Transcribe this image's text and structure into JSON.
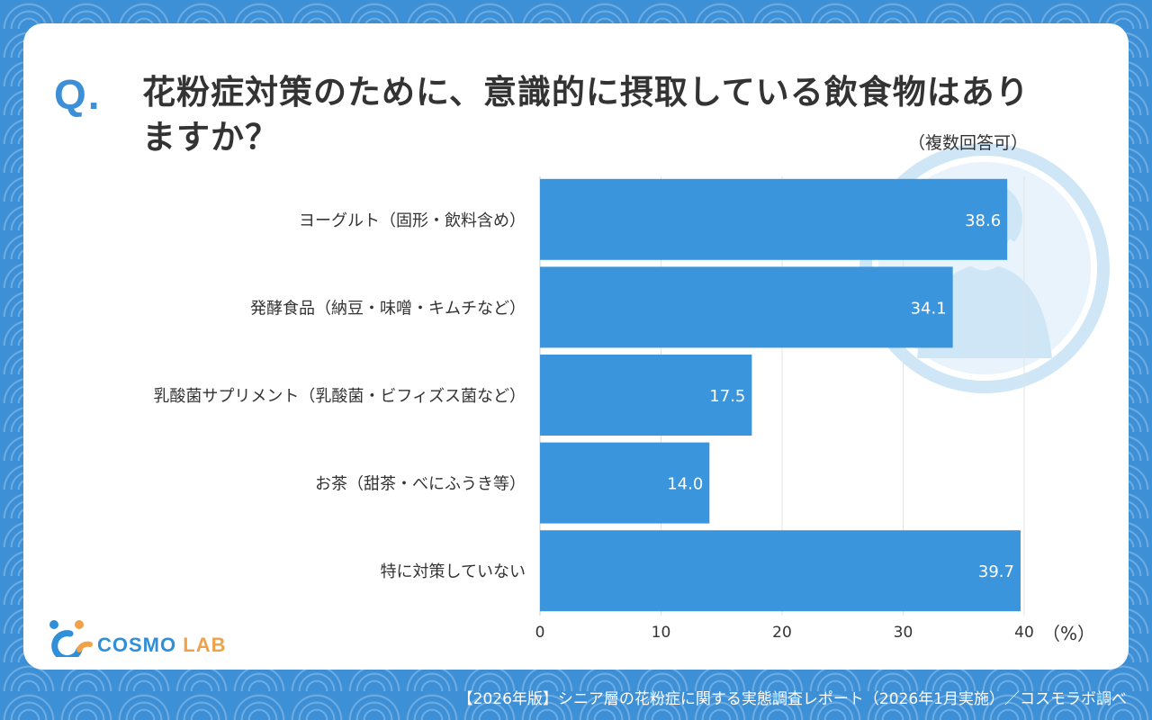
{
  "question_mark": "Q.",
  "title": "花粉症対策のために、意識的に摂取している飲食物はありますか？",
  "note": "（複数回答可）",
  "colors": {
    "bar": "#3a95dc",
    "accent": "#3d8fd6",
    "grid": "#e3e3e3",
    "watermark": "#cfe6f7"
  },
  "chart_data": {
    "type": "bar",
    "orientation": "horizontal",
    "categories": [
      "ヨーグルト（固形・飲料含め）",
      "発酵食品（納豆・味噌・キムチなど）",
      "乳酸菌サプリメント（乳酸菌・ビフィズス菌など）",
      "お茶（甜茶・べにふうき等）",
      "特に対策していない"
    ],
    "values": [
      38.6,
      34.1,
      17.5,
      14.0,
      39.7
    ],
    "value_labels": [
      "38.6",
      "34.1",
      "17.5",
      "14.0",
      "39.7"
    ],
    "x_ticks": [
      0,
      10,
      20,
      30,
      40
    ],
    "xlim": [
      0,
      40
    ],
    "unit_label": "（%）",
    "grid": true
  },
  "logo": {
    "part1": "COSMO",
    "part2": "LAB"
  },
  "footer": "【2026年版】シニア層の花粉症に関する実態調査レポート（2026年1月実施）／コスモラボ調べ"
}
